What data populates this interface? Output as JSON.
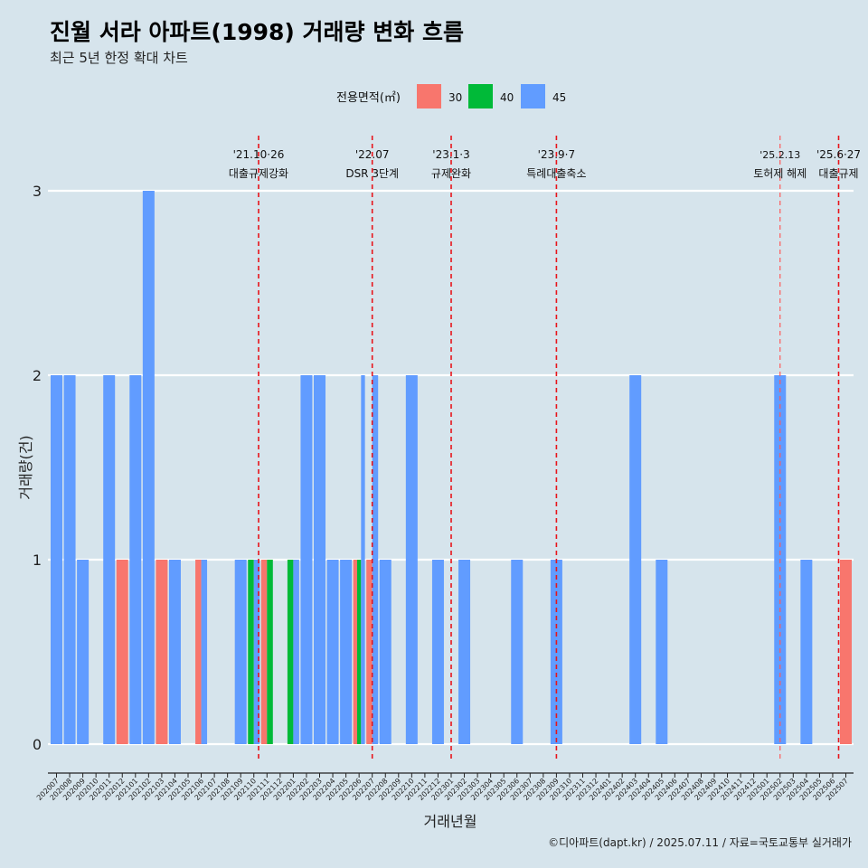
{
  "chart_data": {
    "type": "bar",
    "title": "진월 서라 아파트(1998) 거래량 변화 흐름",
    "subtitle": "최근 5년 한정 확대 차트",
    "xlabel": "거래년월",
    "ylabel": "거래량(건)",
    "ylim": [
      0,
      3
    ],
    "yticks": [
      "0",
      "1",
      "2",
      "3"
    ],
    "grid": "horizontal",
    "legend": {
      "title": "전용면적(㎡)",
      "position": "top",
      "items": [
        {
          "label": "30",
          "color": "#f8766d"
        },
        {
          "label": "40",
          "color": "#00ba38"
        },
        {
          "label": "45",
          "color": "#619cff"
        }
      ]
    },
    "categories": [
      "202007",
      "202008",
      "202009",
      "202010",
      "202011",
      "202012",
      "202101",
      "202102",
      "202103",
      "202104",
      "202105",
      "202106",
      "202107",
      "202108",
      "202109",
      "202110",
      "202111",
      "202112",
      "202201",
      "202202",
      "202203",
      "202204",
      "202205",
      "202206",
      "202207",
      "202208",
      "202209",
      "202210",
      "202211",
      "202212",
      "202301",
      "202302",
      "202303",
      "202304",
      "202305",
      "202306",
      "202307",
      "202308",
      "202309",
      "202310",
      "202311",
      "202312",
      "202401",
      "202402",
      "202403",
      "202404",
      "202405",
      "202406",
      "202407",
      "202408",
      "202409",
      "202410",
      "202411",
      "202412",
      "202501",
      "202502",
      "202503",
      "202504",
      "202505",
      "202506",
      "202507"
    ],
    "bars": [
      {
        "month": "202007",
        "parts": [
          {
            "area": "45",
            "count": 2
          }
        ]
      },
      {
        "month": "202008",
        "parts": [
          {
            "area": "45",
            "count": 2
          }
        ]
      },
      {
        "month": "202009",
        "parts": [
          {
            "area": "45",
            "count": 1
          }
        ]
      },
      {
        "month": "202011",
        "parts": [
          {
            "area": "45",
            "count": 2
          }
        ]
      },
      {
        "month": "202012",
        "parts": [
          {
            "area": "30",
            "count": 1
          }
        ]
      },
      {
        "month": "202101",
        "parts": [
          {
            "area": "45",
            "count": 2
          }
        ]
      },
      {
        "month": "202102",
        "parts": [
          {
            "area": "45",
            "count": 3
          }
        ]
      },
      {
        "month": "202103",
        "parts": [
          {
            "area": "30",
            "count": 1
          }
        ]
      },
      {
        "month": "202104",
        "parts": [
          {
            "area": "45",
            "count": 1
          }
        ]
      },
      {
        "month": "202106",
        "parts": [
          {
            "area": "30",
            "count": 1
          },
          {
            "area": "45",
            "count": 1
          }
        ]
      },
      {
        "month": "202109",
        "parts": [
          {
            "area": "45",
            "count": 1
          }
        ]
      },
      {
        "month": "202110",
        "parts": [
          {
            "area": "40",
            "count": 1
          },
          {
            "area": "45",
            "count": 1
          }
        ]
      },
      {
        "month": "202111",
        "parts": [
          {
            "area": "30",
            "count": 1
          },
          {
            "area": "40",
            "count": 1
          }
        ]
      },
      {
        "month": "202201",
        "parts": [
          {
            "area": "40",
            "count": 1
          },
          {
            "area": "45",
            "count": 1
          }
        ]
      },
      {
        "month": "202202",
        "parts": [
          {
            "area": "45",
            "count": 2
          }
        ]
      },
      {
        "month": "202203",
        "parts": [
          {
            "area": "45",
            "count": 2
          }
        ]
      },
      {
        "month": "202204",
        "parts": [
          {
            "area": "45",
            "count": 1
          }
        ]
      },
      {
        "month": "202205",
        "parts": [
          {
            "area": "45",
            "count": 1
          }
        ]
      },
      {
        "month": "202206",
        "parts": [
          {
            "area": "30",
            "count": 1
          },
          {
            "area": "40",
            "count": 1
          },
          {
            "area": "45",
            "count": 2
          }
        ]
      },
      {
        "month": "202207",
        "parts": [
          {
            "area": "30",
            "count": 1
          },
          {
            "area": "45",
            "count": 2
          }
        ]
      },
      {
        "month": "202208",
        "parts": [
          {
            "area": "45",
            "count": 1
          }
        ]
      },
      {
        "month": "202210",
        "parts": [
          {
            "area": "45",
            "count": 2
          }
        ]
      },
      {
        "month": "202212",
        "parts": [
          {
            "area": "45",
            "count": 1
          }
        ]
      },
      {
        "month": "202302",
        "parts": [
          {
            "area": "45",
            "count": 1
          }
        ]
      },
      {
        "month": "202306",
        "parts": [
          {
            "area": "45",
            "count": 1
          }
        ]
      },
      {
        "month": "202309",
        "parts": [
          {
            "area": "45",
            "count": 1
          }
        ]
      },
      {
        "month": "202403",
        "parts": [
          {
            "area": "45",
            "count": 2
          }
        ]
      },
      {
        "month": "202405",
        "parts": [
          {
            "area": "45",
            "count": 1
          }
        ]
      },
      {
        "month": "202502",
        "parts": [
          {
            "area": "45",
            "count": 2
          }
        ]
      },
      {
        "month": "202504",
        "parts": [
          {
            "area": "45",
            "count": 1
          }
        ]
      },
      {
        "month": "202507",
        "parts": [
          {
            "area": "30",
            "count": 1
          }
        ]
      }
    ],
    "events": [
      {
        "month": "202110",
        "offset": 0.36,
        "date": "'21.10·26",
        "label": "대출규제강화"
      },
      {
        "month": "202207",
        "offset": 0.0,
        "date": "'22.07",
        "label": "DSR 3단계"
      },
      {
        "month": "202301",
        "offset": 0.0,
        "date": "'23.1·3",
        "label": "규제완화"
      },
      {
        "month": "202309",
        "offset": 0.0,
        "date": "'23.9·7",
        "label": "특례대출축소"
      },
      {
        "month": "202502",
        "offset": 0.0,
        "date": "'25.2.13",
        "label": "토허제 해제",
        "thin": true
      },
      {
        "month": "202506",
        "offset": 0.45,
        "date": "'25.6·27",
        "label": "대출규제"
      }
    ],
    "caption": "©디아파트(dapt.kr) / 2025.07.11 / 자료=국토교통부 실거래가"
  }
}
